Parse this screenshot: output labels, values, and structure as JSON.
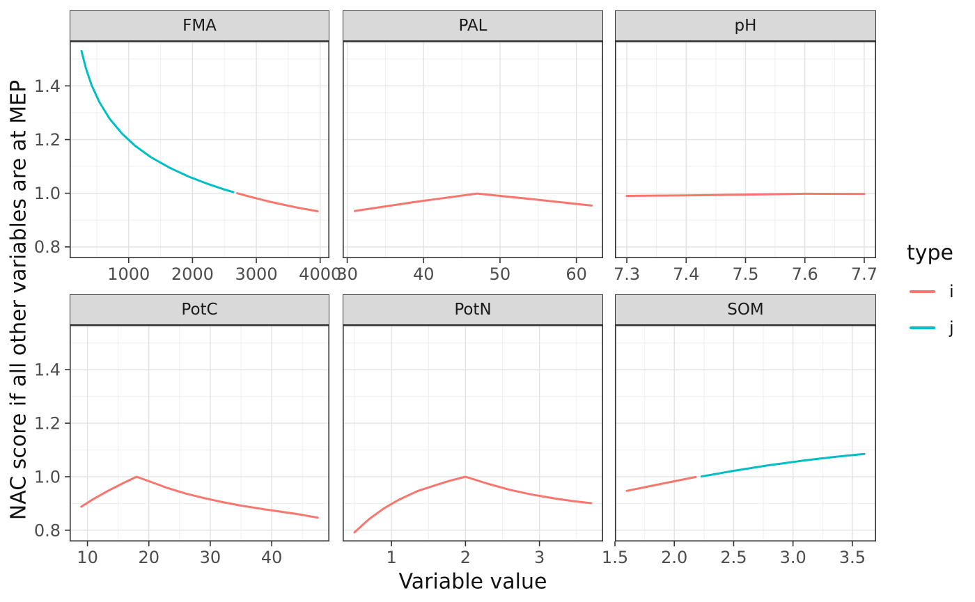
{
  "axes": {
    "x_title": "Variable value",
    "y_title": "NAC score if all other variables are at MEP"
  },
  "legend": {
    "title": "type",
    "entries": [
      {
        "label": "i",
        "color": "#F8766D"
      },
      {
        "label": "j",
        "color": "#00BFC4"
      }
    ]
  },
  "colors": {
    "series_i": "#F8766D",
    "series_j": "#00BFC4",
    "strip_bg": "#D9D9D9",
    "panel_bg": "#FFFFFF",
    "panel_border": "#333333",
    "grid_major": "#E3E3E3",
    "grid_minor": "#F0F0F0",
    "tick_text": "#4D4D4D",
    "title_text": "#111111"
  },
  "chart_data": {
    "type": "line",
    "facet_layout": {
      "rows": 2,
      "cols": 3
    },
    "ylabel": "NAC score if all other variables are at MEP",
    "xlabel": "Variable value",
    "y_domain": [
      0.758,
      1.567
    ],
    "y_ticks": [
      0.8,
      1.0,
      1.2,
      1.4
    ],
    "y_tick_labels": [
      "0.8",
      "1.0",
      "1.2",
      "1.4"
    ],
    "y_minor": [
      0.9,
      1.1,
      1.3,
      1.5
    ],
    "facets": [
      {
        "label": "FMA",
        "x_domain": [
          75,
          4145
        ],
        "x_ticks": [
          1000,
          2000,
          3000,
          4000
        ],
        "x_tick_labels": [
          "1000",
          "2000",
          "3000",
          "4000"
        ],
        "x_minor": [
          500,
          1500,
          2500,
          3500
        ],
        "series": [
          {
            "type": "j",
            "points": [
              [
                260,
                1.53
              ],
              [
                330,
                1.465
              ],
              [
                420,
                1.402
              ],
              [
                540,
                1.34
              ],
              [
                700,
                1.278
              ],
              [
                900,
                1.221
              ],
              [
                1100,
                1.177
              ],
              [
                1350,
                1.134
              ],
              [
                1650,
                1.094
              ],
              [
                1950,
                1.061
              ],
              [
                2250,
                1.034
              ],
              [
                2500,
                1.014
              ],
              [
                2640,
                1.004
              ]
            ]
          },
          {
            "type": "i",
            "points": [
              [
                2700,
                1.0
              ],
              [
                2950,
                0.984
              ],
              [
                3200,
                0.969
              ],
              [
                3450,
                0.956
              ],
              [
                3700,
                0.944
              ],
              [
                3960,
                0.933
              ]
            ]
          }
        ]
      },
      {
        "label": "PAL",
        "x_domain": [
          29.4,
          63.5
        ],
        "x_ticks": [
          30,
          40,
          50,
          60
        ],
        "x_tick_labels": [
          "30",
          "40",
          "50",
          "60"
        ],
        "x_minor": [
          35,
          45,
          55
        ],
        "series": [
          {
            "type": "i",
            "points": [
              [
                31,
                0.934
              ],
              [
                39,
                0.968
              ],
              [
                47,
                0.999
              ],
              [
                54.5,
                0.977
              ],
              [
                62,
                0.954
              ]
            ]
          }
        ]
      },
      {
        "label": "pH",
        "x_domain": [
          7.28,
          7.72
        ],
        "x_ticks": [
          7.3,
          7.4,
          7.5,
          7.6,
          7.7
        ],
        "x_tick_labels": [
          "7.3",
          "7.4",
          "7.5",
          "7.6",
          "7.7"
        ],
        "x_minor": [
          7.35,
          7.45,
          7.55,
          7.65
        ],
        "series": [
          {
            "type": "i",
            "points": [
              [
                7.3,
                0.99
              ],
              [
                7.4,
                0.992
              ],
              [
                7.5,
                0.995
              ],
              [
                7.6,
                0.998
              ],
              [
                7.7,
                0.997
              ]
            ]
          }
        ]
      },
      {
        "label": "PotC",
        "x_domain": [
          7.1,
          49.4
        ],
        "x_ticks": [
          10,
          20,
          30,
          40
        ],
        "x_tick_labels": [
          "10",
          "20",
          "30",
          "40"
        ],
        "x_minor": [
          15,
          25,
          35,
          45
        ],
        "series": [
          {
            "type": "i",
            "points": [
              [
                9,
                0.888
              ],
              [
                11,
                0.917
              ],
              [
                13.5,
                0.949
              ],
              [
                16,
                0.978
              ],
              [
                18,
                1.0
              ],
              [
                20.5,
                0.979
              ],
              [
                23,
                0.958
              ],
              [
                26,
                0.937
              ],
              [
                29,
                0.92
              ],
              [
                32,
                0.905
              ],
              [
                35,
                0.892
              ],
              [
                38,
                0.881
              ],
              [
                41,
                0.871
              ],
              [
                44,
                0.861
              ],
              [
                47.5,
                0.847
              ]
            ]
          }
        ]
      },
      {
        "label": "PotN",
        "x_domain": [
          0.34,
          3.86
        ],
        "x_ticks": [
          1,
          2,
          3
        ],
        "x_tick_labels": [
          "1",
          "2",
          "3"
        ],
        "x_minor": [
          0.5,
          1.5,
          2.5,
          3.5
        ],
        "series": [
          {
            "type": "i",
            "points": [
              [
                0.5,
                0.792
              ],
              [
                0.7,
                0.842
              ],
              [
                0.9,
                0.882
              ],
              [
                1.1,
                0.914
              ],
              [
                1.35,
                0.946
              ],
              [
                1.6,
                0.969
              ],
              [
                1.8,
                0.986
              ],
              [
                2.0,
                1.0
              ],
              [
                2.3,
                0.974
              ],
              [
                2.6,
                0.951
              ],
              [
                2.9,
                0.933
              ],
              [
                3.2,
                0.919
              ],
              [
                3.45,
                0.909
              ],
              [
                3.7,
                0.901
              ]
            ]
          }
        ]
      },
      {
        "label": "SOM",
        "x_domain": [
          1.5,
          3.7
        ],
        "x_ticks": [
          1.5,
          2.0,
          2.5,
          3.0,
          3.5
        ],
        "x_tick_labels": [
          "1.5",
          "2.0",
          "2.5",
          "3.0",
          "3.5"
        ],
        "x_minor": [
          1.75,
          2.25,
          2.75,
          3.25
        ],
        "series": [
          {
            "type": "i",
            "points": [
              [
                1.6,
                0.947
              ],
              [
                1.8,
                0.965
              ],
              [
                2.0,
                0.983
              ],
              [
                2.18,
                0.999
              ]
            ]
          },
          {
            "type": "j",
            "points": [
              [
                2.23,
                1.001
              ],
              [
                2.5,
                1.022
              ],
              [
                2.8,
                1.043
              ],
              [
                3.1,
                1.061
              ],
              [
                3.35,
                1.074
              ],
              [
                3.6,
                1.085
              ]
            ]
          }
        ]
      }
    ]
  }
}
